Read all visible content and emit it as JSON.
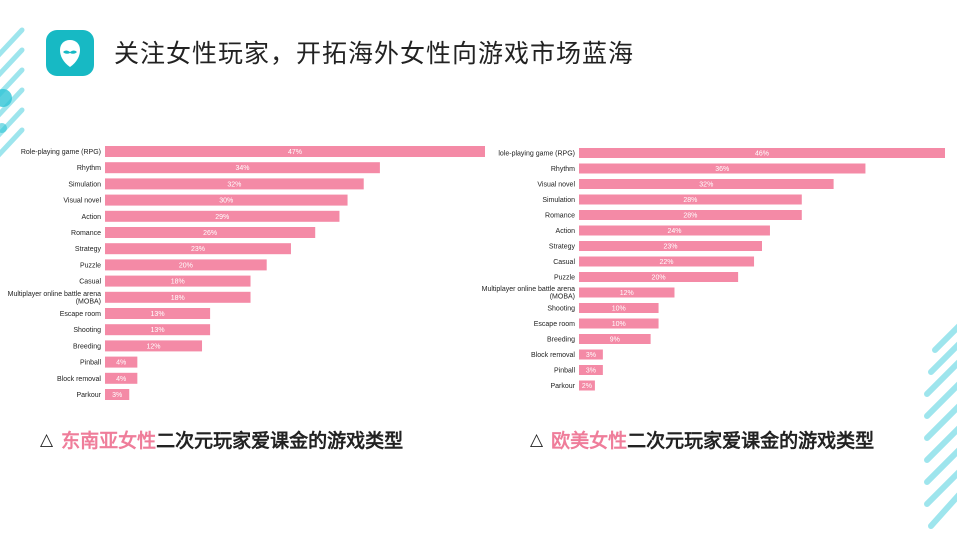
{
  "header": {
    "title": "关注女性玩家，开拓海外女性向游戏市场蓝海",
    "logo_icon": "mustache-avatar-icon"
  },
  "colors": {
    "bar": "#f48aa6",
    "accent": "#17b9c4",
    "highlight": "#ef7d9a"
  },
  "captions": {
    "left": {
      "prefix": "△",
      "highlight": "东南亚女性",
      "rest": "二次元玩家爱课金的游戏类型"
    },
    "right": {
      "prefix": "△",
      "highlight": "欧美女性",
      "rest": "二次元玩家爱课金的游戏类型"
    }
  },
  "chart_data": [
    {
      "type": "bar",
      "orientation": "horizontal",
      "categories": [
        "Role-playing game (RPG)",
        "Rhythm",
        "Simulation",
        "Visual novel",
        "Action",
        "Romance",
        "Strategy",
        "Puzzle",
        "Casual",
        "Multiplayer online battle arena (MOBA)",
        "Escape room",
        "Shooting",
        "Breeding",
        "Pinball",
        "Block removal",
        "Parkour"
      ],
      "values": [
        47,
        34,
        32,
        30,
        29,
        26,
        23,
        20,
        18,
        18,
        13,
        13,
        12,
        4,
        4,
        3
      ],
      "data_labels": [
        "47%",
        "34%",
        "32%",
        "30%",
        "29%",
        "26%",
        "23%",
        "20%",
        "18%",
        "18%",
        "13%",
        "13%",
        "12%",
        "4%",
        "4%",
        "3%"
      ],
      "xlim": [
        0,
        47
      ],
      "grid": false,
      "legend": "none"
    },
    {
      "type": "bar",
      "orientation": "horizontal",
      "categories": [
        "lole-playing game (RPG)",
        "Rhythm",
        "Visual novel",
        "Simulation",
        "Romance",
        "Action",
        "Strategy",
        "Casual",
        "Puzzle",
        "Multiplayer online battle arena (MOBA)",
        "Shooting",
        "Escape room",
        "Breeding",
        "Block removal",
        "Pinball",
        "Parkour"
      ],
      "values": [
        46,
        36,
        32,
        28,
        28,
        24,
        23,
        22,
        20,
        12,
        10,
        10,
        9,
        3,
        3,
        2
      ],
      "data_labels": [
        "46%",
        "36%",
        "32%",
        "28%",
        "28%",
        "24%",
        "23%",
        "22%",
        "20%",
        "12%",
        "10%",
        "10%",
        "9%",
        "3%",
        "3%",
        "2%"
      ],
      "xlim": [
        0,
        46
      ],
      "grid": false,
      "legend": "none"
    }
  ]
}
